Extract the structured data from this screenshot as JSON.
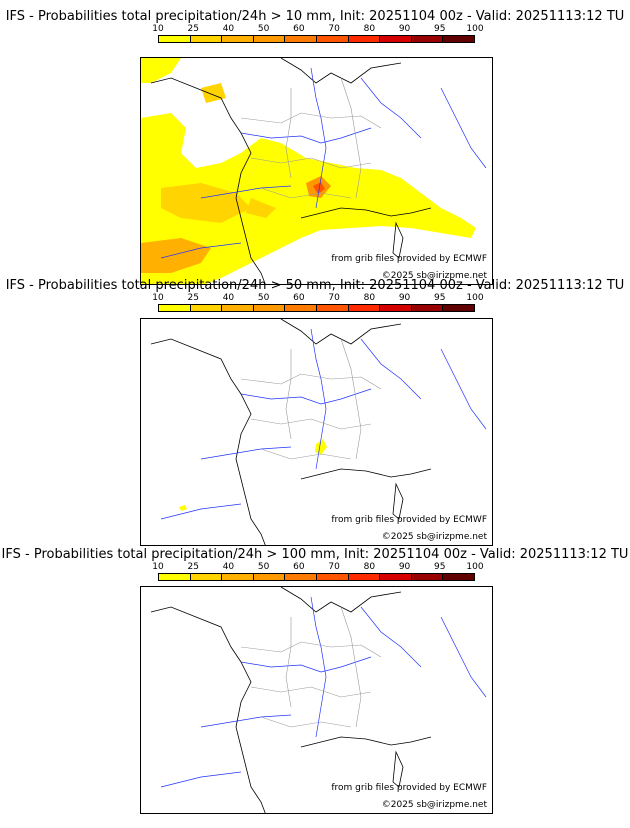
{
  "scale": {
    "ticks": [
      "10",
      "25",
      "40",
      "50",
      "60",
      "70",
      "80",
      "90",
      "95",
      "100"
    ],
    "colors": [
      "#ffff00",
      "#ffd400",
      "#ffb000",
      "#ff9900",
      "#ff7a00",
      "#ff5500",
      "#ff2a00",
      "#d40000",
      "#990000",
      "#600000"
    ]
  },
  "panels": [
    {
      "title": "IFS - Probabilities total precipitation/24h > 10 mm, Init: 20251104 00z - Valid: 20251113:12 TU",
      "source_credit": "from grib files provided by ECMWF",
      "copyright": "©2025 sb@irizpme.net"
    },
    {
      "title": "IFS - Probabilities total precipitation/24h > 50 mm, Init: 20251104 00z - Valid: 20251113:12 TU",
      "source_credit": "from grib files provided by ECMWF",
      "copyright": "©2025 sb@irizpme.net"
    },
    {
      "title": "IFS - Probabilities total precipitation/24h > 100 mm, Init: 20251104 00z - Valid: 20251113:12 TU",
      "source_credit": "from grib files provided by ECMWF",
      "copyright": "©2025 sb@irizpme.net"
    }
  ]
}
